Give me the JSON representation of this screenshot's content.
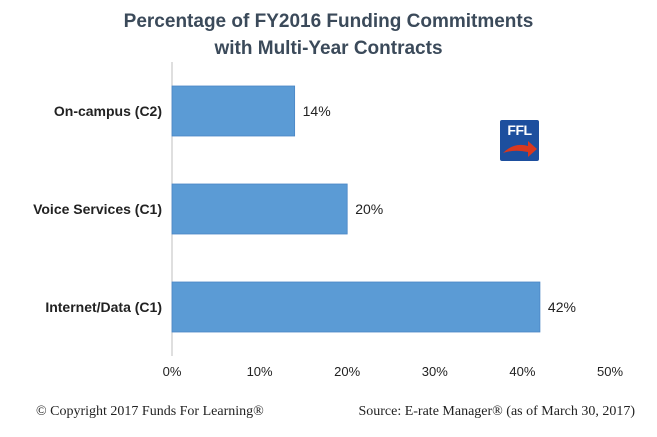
{
  "title": {
    "line1": "Percentage of FY2016 Funding Commitments",
    "line2": "with Multi-Year Contracts"
  },
  "chart_data": {
    "type": "bar",
    "orientation": "horizontal",
    "categories": [
      "On-campus (C2)",
      "Voice Services (C1)",
      "Internet/Data (C1)"
    ],
    "values": [
      14,
      20,
      42
    ],
    "value_labels": [
      "14%",
      "20%",
      "42%"
    ],
    "xlim": [
      0,
      50
    ],
    "xticks": [
      "0%",
      "10%",
      "20%",
      "30%",
      "40%",
      "50%"
    ],
    "bar_color": "#5b9bd5",
    "grid": false,
    "legend": "none"
  },
  "logo": {
    "text": "FFL",
    "color": "#1d4f9e",
    "accent": "#d9381e"
  },
  "footer": {
    "left": "© Copyright 2017 Funds For Learning®",
    "right": "Source: E-rate Manager® (as of March 30, 2017)"
  }
}
